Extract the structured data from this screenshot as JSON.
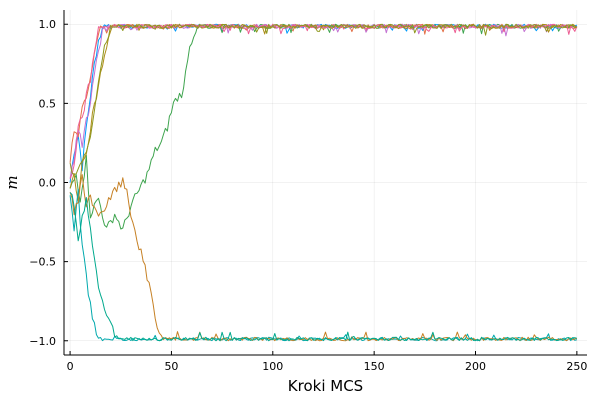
{
  "chart_data": {
    "type": "line",
    "title": "",
    "xlabel": "Kroki MCS",
    "ylabel": "m",
    "xlim": [
      -3,
      255
    ],
    "ylim": [
      -1.09,
      1.09
    ],
    "xticks": [
      0,
      50,
      100,
      150,
      200,
      250
    ],
    "yticks": [
      -1.0,
      -0.5,
      0.0,
      0.5,
      1.0
    ],
    "xtick_labels": [
      "0",
      "50",
      "100",
      "150",
      "200",
      "250"
    ],
    "ytick_labels": [
      "−1.0",
      "−0.5",
      "0.0",
      "0.5",
      "1.0"
    ],
    "grid": true,
    "legend": "none",
    "series": [
      {
        "color": "#009AFA",
        "key_points": [
          [
            0,
            0.0
          ],
          [
            2,
            0.2
          ],
          [
            4,
            0.3
          ],
          [
            6,
            0.1
          ],
          [
            8,
            0.35
          ],
          [
            10,
            0.55
          ],
          [
            12,
            0.75
          ],
          [
            14,
            0.9
          ],
          [
            16,
            0.97
          ],
          [
            20,
            0.99
          ],
          [
            250,
            0.99
          ]
        ],
        "final_level": 1.0,
        "noise": 0.012
      },
      {
        "color": "#E36F47",
        "key_points": [
          [
            0,
            0.1
          ],
          [
            2,
            0.35
          ],
          [
            4,
            0.3
          ],
          [
            6,
            0.45
          ],
          [
            8,
            0.55
          ],
          [
            10,
            0.65
          ],
          [
            12,
            0.8
          ],
          [
            14,
            0.95
          ],
          [
            16,
            0.99
          ],
          [
            250,
            0.99
          ]
        ],
        "final_level": 1.0,
        "noise": 0.012
      },
      {
        "color": "#3EA44E",
        "key_points": [
          [
            0,
            -0.05
          ],
          [
            3,
            0.05
          ],
          [
            5,
            -0.1
          ],
          [
            8,
            0.15
          ],
          [
            10,
            -0.2
          ],
          [
            14,
            -0.1
          ],
          [
            18,
            -0.3
          ],
          [
            22,
            -0.2
          ],
          [
            26,
            -0.3
          ],
          [
            30,
            -0.15
          ],
          [
            34,
            -0.05
          ],
          [
            38,
            0.05
          ],
          [
            42,
            0.2
          ],
          [
            45,
            0.25
          ],
          [
            48,
            0.35
          ],
          [
            51,
            0.5
          ],
          [
            54,
            0.55
          ],
          [
            56,
            0.58
          ],
          [
            58,
            0.8
          ],
          [
            60,
            0.9
          ],
          [
            62,
            0.97
          ],
          [
            66,
            0.99
          ],
          [
            250,
            0.99
          ]
        ],
        "final_level": 1.0,
        "noise": 0.012
      },
      {
        "color": "#C371D2",
        "key_points": [
          [
            0,
            0.0
          ],
          [
            2,
            0.15
          ],
          [
            4,
            0.35
          ],
          [
            6,
            0.25
          ],
          [
            8,
            0.4
          ],
          [
            10,
            0.5
          ],
          [
            12,
            0.7
          ],
          [
            14,
            0.85
          ],
          [
            16,
            0.95
          ],
          [
            18,
            0.99
          ],
          [
            250,
            0.99
          ]
        ],
        "final_level": 1.0,
        "noise": 0.012
      },
      {
        "color": "#AC8D18",
        "key_points": [
          [
            0,
            -0.05
          ],
          [
            2,
            0.05
          ],
          [
            4,
            -0.1
          ],
          [
            6,
            0.1
          ],
          [
            8,
            0.2
          ],
          [
            10,
            0.35
          ],
          [
            12,
            0.5
          ],
          [
            14,
            0.6
          ],
          [
            16,
            0.75
          ],
          [
            18,
            0.85
          ],
          [
            20,
            0.95
          ],
          [
            22,
            0.99
          ],
          [
            250,
            0.99
          ]
        ],
        "final_level": 1.0,
        "noise": 0.012
      },
      {
        "color": "#00A9AD",
        "key_points": [
          [
            0,
            -0.1
          ],
          [
            1,
            -0.2
          ],
          [
            2,
            -0.3
          ],
          [
            3,
            -0.15
          ],
          [
            4,
            -0.05
          ],
          [
            5,
            -0.25
          ],
          [
            6,
            -0.4
          ],
          [
            7,
            -0.5
          ],
          [
            8,
            -0.6
          ],
          [
            9,
            -0.7
          ],
          [
            10,
            -0.78
          ],
          [
            11,
            -0.85
          ],
          [
            12,
            -0.9
          ],
          [
            13,
            -0.94
          ],
          [
            14,
            -0.96
          ],
          [
            16,
            -0.98
          ],
          [
            18,
            -0.99
          ],
          [
            20,
            -0.99
          ],
          [
            250,
            -0.99
          ]
        ],
        "final_level": -1.0,
        "noise": 0.01
      },
      {
        "color": "#ED5E93",
        "key_points": [
          [
            0,
            0.05
          ],
          [
            2,
            0.1
          ],
          [
            4,
            0.35
          ],
          [
            6,
            0.4
          ],
          [
            8,
            0.55
          ],
          [
            10,
            0.65
          ],
          [
            12,
            0.85
          ],
          [
            14,
            0.97
          ],
          [
            16,
            0.99
          ],
          [
            250,
            0.99
          ]
        ],
        "final_level": 1.0,
        "noise": 0.012
      },
      {
        "color": "#C68125",
        "key_points": [
          [
            0,
            -0.05
          ],
          [
            2,
            -0.2
          ],
          [
            4,
            -0.1
          ],
          [
            6,
            0.05
          ],
          [
            8,
            -0.15
          ],
          [
            10,
            -0.1
          ],
          [
            14,
            -0.2
          ],
          [
            18,
            -0.15
          ],
          [
            22,
            -0.05
          ],
          [
            26,
            0.0
          ],
          [
            28,
            -0.05
          ],
          [
            30,
            -0.2
          ],
          [
            32,
            -0.3
          ],
          [
            34,
            -0.4
          ],
          [
            36,
            -0.5
          ],
          [
            38,
            -0.6
          ],
          [
            40,
            -0.7
          ],
          [
            42,
            -0.85
          ],
          [
            44,
            -0.95
          ],
          [
            46,
            -0.99
          ],
          [
            250,
            -0.99
          ]
        ],
        "final_level": -1.0,
        "noise": 0.01
      },
      {
        "color": "#00A98D",
        "key_points": [
          [
            0,
            -0.05
          ],
          [
            2,
            -0.15
          ],
          [
            4,
            -0.35
          ],
          [
            6,
            -0.2
          ],
          [
            8,
            -0.1
          ],
          [
            10,
            -0.3
          ],
          [
            12,
            -0.5
          ],
          [
            14,
            -0.65
          ],
          [
            16,
            -0.75
          ],
          [
            18,
            -0.82
          ],
          [
            20,
            -0.9
          ],
          [
            22,
            -0.95
          ],
          [
            24,
            -0.98
          ],
          [
            26,
            -0.99
          ],
          [
            250,
            -0.99
          ]
        ],
        "final_level": -1.0,
        "noise": 0.01
      },
      {
        "color": "#8E971D",
        "key_points": [
          [
            0,
            0.1
          ],
          [
            3,
            0.05
          ],
          [
            6,
            0.15
          ],
          [
            8,
            0.2
          ],
          [
            10,
            0.3
          ],
          [
            13,
            0.55
          ],
          [
            16,
            0.8
          ],
          [
            18,
            0.9
          ],
          [
            20,
            0.98
          ],
          [
            250,
            0.99
          ]
        ],
        "final_level": 1.0,
        "noise": 0.012
      }
    ]
  }
}
